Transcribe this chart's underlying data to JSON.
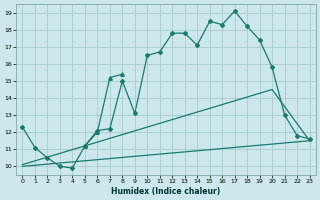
{
  "xlabel": "Humidex (Indice chaleur)",
  "bg_color": "#cce8ec",
  "grid_color": "#aacccc",
  "line_color": "#1a7a6e",
  "xlim": [
    -0.5,
    23.5
  ],
  "ylim": [
    9.5,
    19.5
  ],
  "xticks": [
    0,
    1,
    2,
    3,
    4,
    5,
    6,
    7,
    8,
    9,
    10,
    11,
    12,
    13,
    14,
    15,
    16,
    17,
    18,
    19,
    20,
    21,
    22,
    23
  ],
  "yticks": [
    10,
    11,
    12,
    13,
    14,
    15,
    16,
    17,
    18,
    19
  ],
  "series1_x": [
    0,
    1,
    2,
    3,
    4,
    5,
    6,
    7,
    8,
    9,
    10,
    11,
    12,
    13,
    14,
    15,
    16,
    17,
    18,
    19,
    20,
    21,
    22,
    23
  ],
  "series1_y": [
    12.3,
    11.1,
    10.5,
    10.0,
    9.9,
    11.2,
    12.1,
    12.2,
    15.0,
    13.1,
    16.5,
    16.7,
    17.8,
    17.8,
    17.1,
    18.5,
    18.3,
    19.1,
    18.2,
    17.4,
    15.8,
    13.0,
    11.8,
    11.6
  ],
  "series2_x": [
    5,
    6,
    7,
    8
  ],
  "series2_y": [
    11.2,
    12.0,
    15.2,
    15.4
  ],
  "series3_x": [
    0,
    23
  ],
  "series3_y": [
    10.0,
    11.5
  ],
  "series4_x": [
    0,
    20,
    23
  ],
  "series4_y": [
    10.1,
    14.5,
    11.5
  ]
}
